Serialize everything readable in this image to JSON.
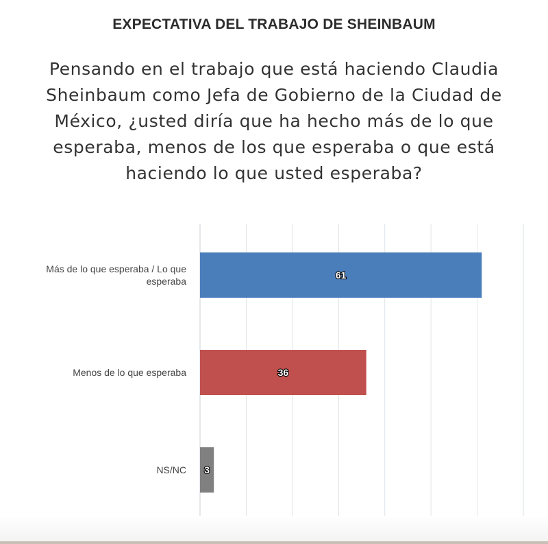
{
  "header": {
    "title": "EXPECTATIVA DEL TRABAJO DE SHEINBAUM",
    "question": "Pensando en el trabajo que está haciendo Claudia Sheinbaum como Jefa de Gobierno de la Ciudad de México, ¿usted diría que ha hecho más de lo que esperaba, menos de los que esperaba o que está haciendo lo que usted esperaba?"
  },
  "chart_data": {
    "type": "bar",
    "orientation": "horizontal",
    "categories": [
      [
        "Más de lo que esperaba / Lo que",
        "esperaba"
      ],
      [
        "Menos de lo que esperaba"
      ],
      [
        "NS/NC"
      ]
    ],
    "values": [
      61,
      36,
      3
    ],
    "data_labels": [
      "61",
      "36",
      "3"
    ],
    "colors": [
      "#4a7ebb",
      "#c0504d",
      "#808080"
    ],
    "xlim": [
      0,
      70
    ],
    "xticks": [
      "0",
      "10",
      "20",
      "30",
      "40",
      "50",
      "60",
      "70"
    ],
    "grid": true,
    "legend": "none"
  }
}
